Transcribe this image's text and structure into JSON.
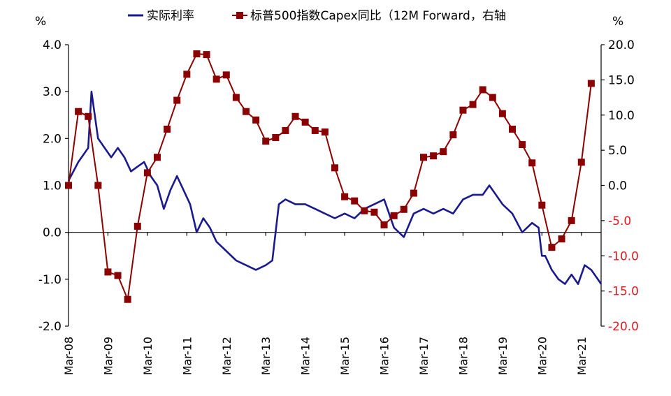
{
  "chart_data": {
    "type": "line",
    "legend": {
      "placement": "top",
      "items": [
        "实际利率",
        "标普500指数Capex同比（12M Forward，右轴"
      ]
    },
    "x_ticks": [
      "Mar-08",
      "Mar-09",
      "Mar-10",
      "Mar-11",
      "Mar-12",
      "Mar-13",
      "Mar-14",
      "Mar-15",
      "Mar-16",
      "Mar-17",
      "Mar-18",
      "Mar-19",
      "Mar-20",
      "Mar-21"
    ],
    "y_left": {
      "unit": "%",
      "ticks": [
        "4.0",
        "3.0",
        "2.0",
        "1.0",
        "0.0",
        "-1.0",
        "-2.0"
      ],
      "range": [
        -2.0,
        4.0
      ]
    },
    "y_right": {
      "unit": "%",
      "ticks": [
        "20.0",
        "15.0",
        "10.0",
        "5.0",
        "0.0",
        "-5.0",
        "-10.0",
        "-15.0",
        "-20.0"
      ],
      "range": [
        -20.0,
        20.0
      ]
    },
    "x_range": [
      "2008-03",
      "2021-09"
    ],
    "grid": false,
    "colors": {
      "real_rate": "#1a1a8c",
      "capex": "#8b0000",
      "right_axis_labels": "#e0191f"
    },
    "series": [
      {
        "name": "实际利率",
        "axis": "left",
        "x": [
          "2008-03",
          "2008-06",
          "2008-09",
          "2008-10",
          "2008-11",
          "2008-12",
          "2009-02",
          "2009-04",
          "2009-06",
          "2009-08",
          "2009-10",
          "2009-12",
          "2010-02",
          "2010-04",
          "2010-06",
          "2010-08",
          "2010-10",
          "2010-12",
          "2011-02",
          "2011-04",
          "2011-06",
          "2011-08",
          "2011-10",
          "2011-12",
          "2012-03",
          "2012-06",
          "2012-09",
          "2012-12",
          "2013-03",
          "2013-05",
          "2013-07",
          "2013-09",
          "2013-12",
          "2014-03",
          "2014-06",
          "2014-09",
          "2014-12",
          "2015-03",
          "2015-06",
          "2015-09",
          "2015-12",
          "2016-03",
          "2016-06",
          "2016-09",
          "2016-12",
          "2017-03",
          "2017-06",
          "2017-09",
          "2017-12",
          "2018-03",
          "2018-06",
          "2018-09",
          "2018-11",
          "2019-01",
          "2019-03",
          "2019-06",
          "2019-09",
          "2019-12",
          "2020-02",
          "2020-03",
          "2020-04",
          "2020-06",
          "2020-08",
          "2020-10",
          "2020-12",
          "2021-02",
          "2021-04",
          "2021-06",
          "2021-08",
          "2021-09"
        ],
        "values": [
          1.1,
          1.5,
          1.8,
          3.0,
          2.5,
          2.0,
          1.8,
          1.6,
          1.8,
          1.6,
          1.3,
          1.4,
          1.5,
          1.2,
          1.0,
          0.5,
          0.9,
          1.2,
          0.9,
          0.6,
          0.0,
          0.3,
          0.1,
          -0.2,
          -0.4,
          -0.6,
          -0.7,
          -0.8,
          -0.7,
          -0.6,
          0.6,
          0.7,
          0.6,
          0.6,
          0.5,
          0.4,
          0.3,
          0.4,
          0.3,
          0.5,
          0.6,
          0.7,
          0.1,
          -0.1,
          0.4,
          0.5,
          0.4,
          0.5,
          0.4,
          0.7,
          0.8,
          0.8,
          1.0,
          0.8,
          0.6,
          0.4,
          0.0,
          0.2,
          0.1,
          -0.5,
          -0.5,
          -0.8,
          -1.0,
          -1.1,
          -0.9,
          -1.1,
          -0.7,
          -0.8,
          -1.0,
          -1.1
        ]
      },
      {
        "name": "标普500指数Capex同比（12M Forward，右轴",
        "axis": "right",
        "x": [
          "2008-03",
          "2008-06",
          "2008-09",
          "2008-12",
          "2009-03",
          "2009-06",
          "2009-09",
          "2009-12",
          "2010-03",
          "2010-06",
          "2010-09",
          "2010-12",
          "2011-03",
          "2011-06",
          "2011-09",
          "2011-12",
          "2012-03",
          "2012-06",
          "2012-09",
          "2012-12",
          "2013-03",
          "2013-06",
          "2013-09",
          "2013-12",
          "2014-03",
          "2014-06",
          "2014-09",
          "2014-12",
          "2015-03",
          "2015-06",
          "2015-09",
          "2015-12",
          "2016-03",
          "2016-06",
          "2016-09",
          "2016-12",
          "2017-03",
          "2017-06",
          "2017-09",
          "2017-12",
          "2018-03",
          "2018-06",
          "2018-09",
          "2018-12",
          "2019-03",
          "2019-06",
          "2019-09",
          "2019-12",
          "2020-03",
          "2020-06",
          "2020-09",
          "2020-12",
          "2021-03",
          "2021-06"
        ],
        "values": [
          0.0,
          10.5,
          9.8,
          0.0,
          -12.3,
          -12.8,
          -16.2,
          -5.8,
          1.8,
          4.0,
          8.0,
          12.1,
          15.8,
          18.7,
          18.6,
          15.1,
          15.7,
          12.5,
          10.5,
          9.3,
          6.3,
          6.8,
          7.8,
          9.8,
          9.0,
          7.8,
          7.6,
          2.5,
          -1.6,
          -2.2,
          -3.6,
          -3.8,
          -5.6,
          -4.3,
          -3.4,
          -1.1,
          4.0,
          4.2,
          4.8,
          7.2,
          10.7,
          11.5,
          13.6,
          12.5,
          10.2,
          8.0,
          5.8,
          3.2,
          -2.8,
          -8.8,
          -7.6,
          -5.0,
          3.3,
          14.5
        ]
      }
    ]
  }
}
